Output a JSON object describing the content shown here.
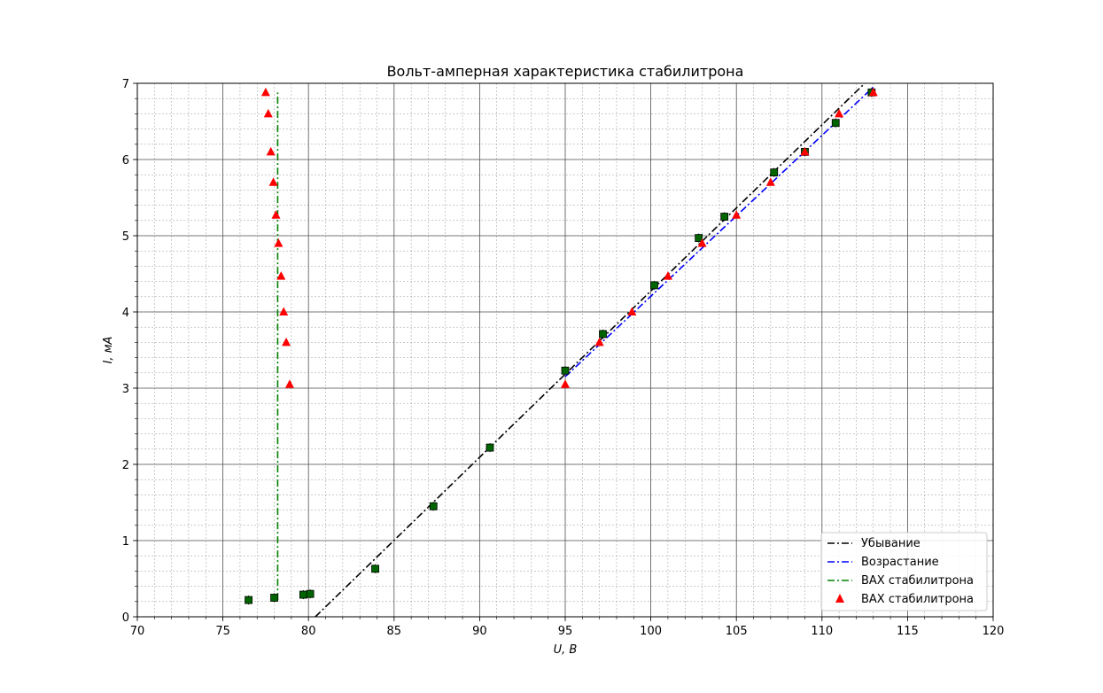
{
  "chart_data": {
    "type": "scatter",
    "title": "Вольт-амперная характеристика стабилитрона",
    "xlabel": "U, В",
    "ylabel": "I, мА",
    "xlim": [
      70,
      120
    ],
    "ylim": [
      0,
      7
    ],
    "x_ticks": [
      70,
      75,
      80,
      85,
      90,
      95,
      100,
      105,
      110,
      115,
      120
    ],
    "y_ticks": [
      0,
      1,
      2,
      3,
      4,
      5,
      6,
      7
    ],
    "grid": "major and minor",
    "legend_position": "lower-right",
    "lines": [
      {
        "name": "Убывание",
        "color": "#000000",
        "style": "dashdot",
        "points": [
          [
            80.4,
            0.0
          ],
          [
            112.5,
            7.0
          ]
        ]
      },
      {
        "name": "Возрастание",
        "color": "#0000ff",
        "style": "dashdot",
        "points": [
          [
            95.0,
            3.15
          ],
          [
            113.0,
            6.95
          ]
        ]
      },
      {
        "name": "ВАХ стабилитрона",
        "color": "#008000",
        "style": "dashdot",
        "points": [
          [
            78.2,
            0.22
          ],
          [
            78.2,
            6.88
          ]
        ]
      }
    ],
    "scatter": {
      "name": "ВАХ стабилитрона",
      "color": "#ff0000",
      "marker": "triangle",
      "points": [
        [
          77.5,
          6.88
        ],
        [
          77.65,
          6.6
        ],
        [
          77.8,
          6.1
        ],
        [
          77.95,
          5.7
        ],
        [
          78.1,
          5.27
        ],
        [
          78.25,
          4.9
        ],
        [
          78.4,
          4.47
        ],
        [
          78.55,
          4.0
        ],
        [
          78.7,
          3.6
        ],
        [
          78.9,
          3.05
        ],
        [
          95.0,
          3.05
        ],
        [
          97.0,
          3.6
        ],
        [
          98.9,
          4.0
        ],
        [
          101.0,
          4.47
        ],
        [
          103.0,
          4.9
        ],
        [
          105.0,
          5.27
        ],
        [
          107.0,
          5.7
        ],
        [
          109.0,
          6.1
        ],
        [
          111.0,
          6.6
        ],
        [
          113.0,
          6.88
        ]
      ]
    },
    "squares": {
      "color": "#006400",
      "points": [
        [
          76.5,
          0.22
        ],
        [
          78.0,
          0.25
        ],
        [
          79.7,
          0.29
        ],
        [
          80.1,
          0.3
        ],
        [
          83.9,
          0.63
        ],
        [
          87.3,
          1.45
        ],
        [
          90.6,
          2.22
        ],
        [
          95.0,
          3.23
        ],
        [
          97.2,
          3.71
        ],
        [
          100.2,
          4.35
        ],
        [
          102.8,
          4.97
        ],
        [
          104.3,
          5.25
        ],
        [
          107.2,
          5.83
        ],
        [
          109.0,
          6.1
        ],
        [
          110.8,
          6.48
        ],
        [
          112.9,
          6.88
        ]
      ]
    }
  }
}
